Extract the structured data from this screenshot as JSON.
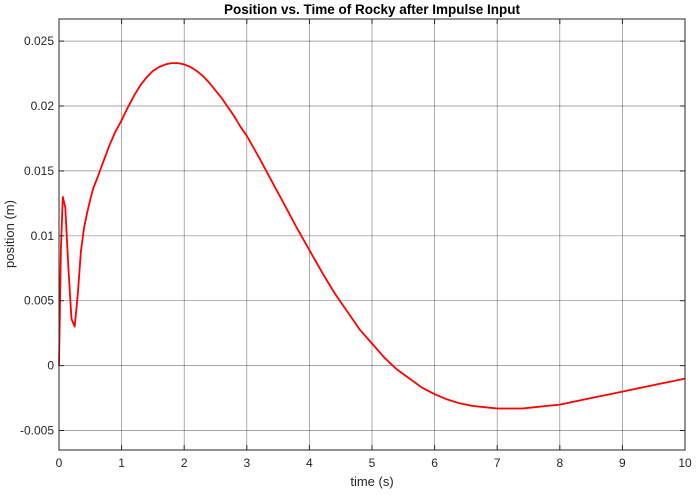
{
  "chart_data": {
    "type": "line",
    "title": "Position vs. Time of Rocky after Impulse Input",
    "xlabel": "time (s)",
    "ylabel": "position (m)",
    "xlim": [
      0,
      10
    ],
    "ylim": [
      -0.0065,
      0.0267
    ],
    "grid": true,
    "xticks": [
      0,
      1,
      2,
      3,
      4,
      5,
      6,
      7,
      8,
      9,
      10
    ],
    "xtick_labels": [
      "0",
      "1",
      "2",
      "3",
      "4",
      "5",
      "6",
      "7",
      "8",
      "9",
      "10"
    ],
    "yticks": [
      -0.005,
      0,
      0.005,
      0.01,
      0.015,
      0.02,
      0.025
    ],
    "ytick_labels": [
      "-0.005",
      "0",
      "0.005",
      "0.01",
      "0.015",
      "0.02",
      "0.025"
    ],
    "series": [
      {
        "color": "#ff0000",
        "x": [
          0,
          0.03,
          0.06,
          0.1,
          0.15,
          0.2,
          0.25,
          0.3,
          0.35,
          0.4,
          0.45,
          0.5,
          0.55,
          0.6,
          0.7,
          0.8,
          0.9,
          1.0,
          1.1,
          1.2,
          1.3,
          1.4,
          1.5,
          1.6,
          1.7,
          1.8,
          1.9,
          2.0,
          2.1,
          2.2,
          2.3,
          2.4,
          2.5,
          2.6,
          2.7,
          2.8,
          2.9,
          3.0,
          3.2,
          3.4,
          3.6,
          3.8,
          4.0,
          4.2,
          4.4,
          4.6,
          4.8,
          5.0,
          5.2,
          5.4,
          5.6,
          5.8,
          6.0,
          6.2,
          6.4,
          6.6,
          6.8,
          7.0,
          7.2,
          7.4,
          7.6,
          7.8,
          8.0,
          8.2,
          8.4,
          8.6,
          8.8,
          9.0,
          9.2,
          9.4,
          9.6,
          9.8,
          10.0
        ],
        "y": [
          0,
          0.009,
          0.013,
          0.0122,
          0.0075,
          0.0036,
          0.003,
          0.0055,
          0.0088,
          0.0106,
          0.0118,
          0.0128,
          0.0137,
          0.0143,
          0.0156,
          0.0169,
          0.018,
          0.0189,
          0.0199,
          0.0208,
          0.0216,
          0.0222,
          0.0227,
          0.023,
          0.0232,
          0.0233,
          0.0233,
          0.0232,
          0.023,
          0.0227,
          0.0223,
          0.0218,
          0.0212,
          0.0206,
          0.0199,
          0.0192,
          0.0184,
          0.0177,
          0.016,
          0.0142,
          0.0124,
          0.0106,
          0.0089,
          0.0072,
          0.0056,
          0.0042,
          0.0028,
          0.0017,
          0.0006,
          -0.0003,
          -0.001,
          -0.0017,
          -0.0022,
          -0.0026,
          -0.0029,
          -0.0031,
          -0.0032,
          -0.0033,
          -0.0033,
          -0.0033,
          -0.0032,
          -0.0031,
          -0.003,
          -0.0028,
          -0.0026,
          -0.0024,
          -0.0022,
          -0.002,
          -0.0018,
          -0.0016,
          -0.0014,
          -0.0012,
          -0.001
        ]
      }
    ]
  }
}
